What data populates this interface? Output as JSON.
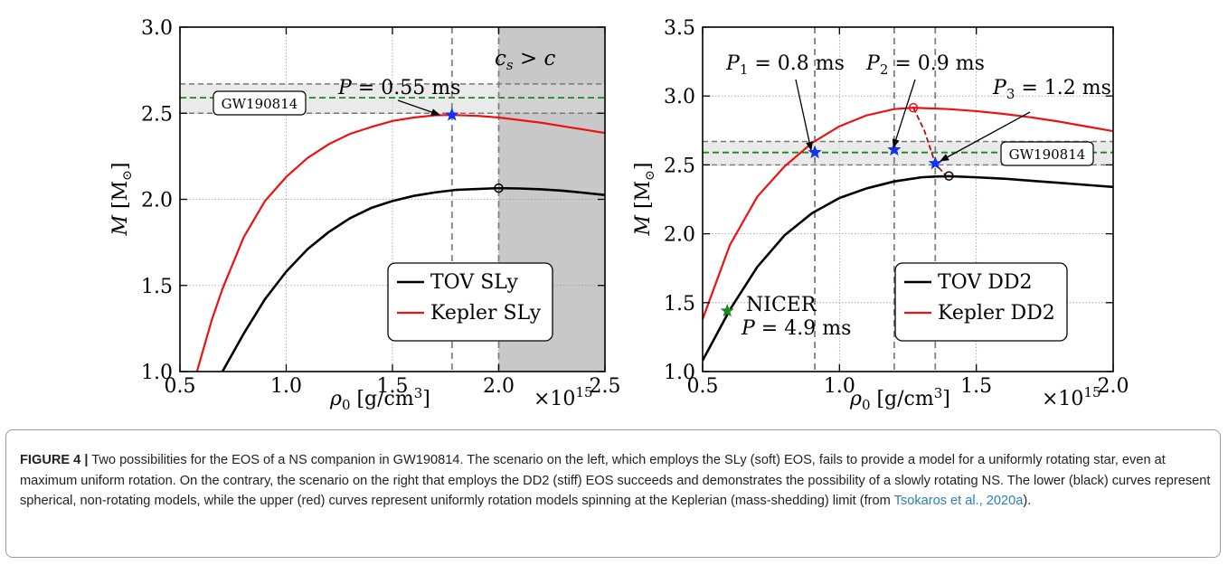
{
  "chart_data": [
    {
      "type": "line",
      "xlabel_parts": {
        "symbol": "ρ",
        "sub": "0",
        "units_pre": "[g/cm",
        "units_sup": "3",
        "units_post": "]"
      },
      "ylabel_parts": {
        "symbol": "M",
        "units_pre": "[M",
        "units_sub": "⊙",
        "units_post": "]"
      },
      "x_multiplier": {
        "base": "×10",
        "exp": "15"
      },
      "xlim": [
        0.5,
        2.5
      ],
      "ylim": [
        1.0,
        3.0
      ],
      "x_ticks": [
        "0.5",
        "1.0",
        "1.5",
        "2.0",
        "2.5"
      ],
      "y_ticks": [
        "1.0",
        "1.5",
        "2.0",
        "2.5",
        "3.0"
      ],
      "grid": true,
      "legend_position": "bottom-right",
      "series": [
        {
          "name": "TOV SLy",
          "color": "#000000",
          "x": [
            0.7,
            0.8,
            0.9,
            1.0,
            1.1,
            1.2,
            1.3,
            1.4,
            1.5,
            1.6,
            1.7,
            1.8,
            1.9,
            2.0,
            2.1,
            2.2,
            2.3,
            2.4,
            2.5
          ],
          "y": [
            1.0,
            1.22,
            1.42,
            1.58,
            1.71,
            1.81,
            1.89,
            1.95,
            1.99,
            2.02,
            2.04,
            2.055,
            2.06,
            2.065,
            2.063,
            2.058,
            2.05,
            2.038,
            2.025
          ]
        },
        {
          "name": "Kepler SLy",
          "color": "#ee1111",
          "x": [
            0.58,
            0.65,
            0.7,
            0.8,
            0.9,
            1.0,
            1.1,
            1.2,
            1.3,
            1.4,
            1.5,
            1.6,
            1.7,
            1.78,
            1.9,
            2.0,
            2.1,
            2.2,
            2.3,
            2.4,
            2.5
          ],
          "y": [
            1.0,
            1.3,
            1.48,
            1.78,
            1.99,
            2.13,
            2.24,
            2.32,
            2.38,
            2.42,
            2.455,
            2.475,
            2.488,
            2.49,
            2.485,
            2.475,
            2.46,
            2.445,
            2.425,
            2.405,
            2.385
          ]
        }
      ],
      "band": {
        "label": "GW190814",
        "center": 2.59,
        "low": 2.5,
        "high": 2.67
      },
      "vlines": [
        1.78,
        2.0
      ],
      "shaded_region": {
        "from": 2.0,
        "to": 2.5,
        "label": "c_s > c"
      },
      "markers": [
        {
          "type": "star",
          "color": "#1133ee",
          "x": 1.78,
          "y": 2.49
        },
        {
          "type": "circle",
          "color": "#000000",
          "x": 2.0,
          "y": 2.065
        }
      ],
      "annotations": [
        {
          "text": "P = 0.55 ms",
          "x": 1.78,
          "y": 2.49
        }
      ]
    },
    {
      "type": "line",
      "xlabel_parts": {
        "symbol": "ρ",
        "sub": "0",
        "units_pre": "[g/cm",
        "units_sup": "3",
        "units_post": "]"
      },
      "ylabel_parts": {
        "symbol": "M",
        "units_pre": "[M",
        "units_sub": "⊙",
        "units_post": "]"
      },
      "x_multiplier": {
        "base": "×10",
        "exp": "15"
      },
      "xlim": [
        0.5,
        2.0
      ],
      "ylim": [
        1.0,
        3.5
      ],
      "x_ticks": [
        "0.5",
        "1.0",
        "1.5",
        "2.0"
      ],
      "y_ticks": [
        "1.0",
        "1.5",
        "2.0",
        "2.5",
        "3.0",
        "3.5"
      ],
      "grid": true,
      "legend_position": "bottom-right",
      "series": [
        {
          "name": "TOV DD2",
          "color": "#000000",
          "x": [
            0.5,
            0.6,
            0.7,
            0.8,
            0.9,
            1.0,
            1.1,
            1.2,
            1.3,
            1.35,
            1.4,
            1.5,
            1.6,
            1.7,
            1.8,
            1.9,
            2.0
          ],
          "y": [
            1.08,
            1.45,
            1.76,
            1.99,
            2.15,
            2.26,
            2.33,
            2.38,
            2.41,
            2.415,
            2.418,
            2.41,
            2.4,
            2.385,
            2.37,
            2.355,
            2.34
          ]
        },
        {
          "name": "Kepler DD2",
          "color": "#ee1111",
          "x": [
            0.5,
            0.6,
            0.7,
            0.8,
            0.9,
            1.0,
            1.1,
            1.2,
            1.27,
            1.4,
            1.5,
            1.6,
            1.7,
            1.8,
            1.9,
            2.0
          ],
          "y": [
            1.38,
            1.92,
            2.27,
            2.49,
            2.66,
            2.78,
            2.86,
            2.905,
            2.915,
            2.905,
            2.89,
            2.87,
            2.845,
            2.815,
            2.78,
            2.745
          ]
        }
      ],
      "dashed_red_segment": {
        "x": [
          1.27,
          1.31,
          1.35,
          1.39
        ],
        "y": [
          2.915,
          2.75,
          2.51,
          2.42
        ]
      },
      "band": {
        "label": "GW190814",
        "center": 2.59,
        "low": 2.5,
        "high": 2.67
      },
      "vlines": [
        0.91,
        1.2,
        1.35
      ],
      "markers": [
        {
          "type": "star",
          "color": "#1133ee",
          "x": 0.91,
          "y": 2.59
        },
        {
          "type": "star",
          "color": "#1133ee",
          "x": 1.2,
          "y": 2.61
        },
        {
          "type": "star",
          "color": "#1133ee",
          "x": 1.35,
          "y": 2.51
        },
        {
          "type": "star",
          "color": "#1a8a1a",
          "x": 0.59,
          "y": 1.44
        },
        {
          "type": "circle",
          "color": "#ee1111",
          "x": 1.27,
          "y": 2.915
        },
        {
          "type": "circle",
          "color": "#000000",
          "x": 1.4,
          "y": 2.42
        }
      ],
      "annotations": [
        {
          "text": "P1 = 0.8 ms",
          "x": 0.91,
          "y": 2.59
        },
        {
          "text": "P2 = 0.9 ms",
          "x": 1.2,
          "y": 2.61
        },
        {
          "text": "P3 = 1.2 ms",
          "x": 1.35,
          "y": 2.51
        },
        {
          "text": "NICER",
          "x": 0.59,
          "y": 1.44
        },
        {
          "text": "P = 4.9 ms",
          "x": 0.59,
          "y": 1.44
        }
      ]
    }
  ],
  "caption": {
    "label": "FIGURE 4 |",
    "text_before_link": " Two possibilities for the EOS of a NS companion in GW190814. The scenario on the left, which employs the SLy (soft) EOS, fails to provide a model for a uniformly rotating star, even at maximum uniform rotation. On the contrary, the scenario on the right that employs the DD2 (stiff) EOS succeeds and demonstrates the possibility of a slowly rotating NS. The lower (black) curves represent spherical, non-rotating models, while the upper (red) curves represent uniformly rotation models spinning at the Keplerian (mass-shedding) limit (from ",
    "link_text": "Tsokaros et al., 2020a",
    "text_after_link": ")."
  }
}
